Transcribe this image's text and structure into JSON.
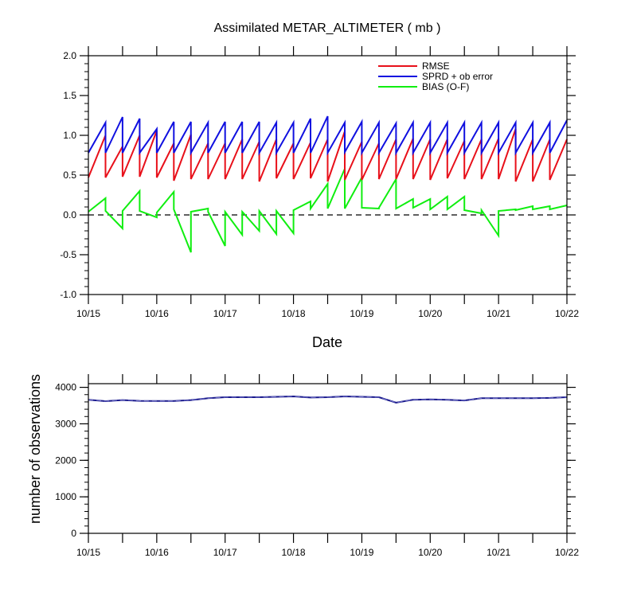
{
  "chart_data": [
    {
      "type": "line",
      "title": "Assimilated METAR_ALTIMETER ( mb )",
      "xlabel": "Date",
      "ylabel": "",
      "xlim": [
        "10/15 00Z",
        "10/22 00Z"
      ],
      "ylim": [
        -1.0,
        2.0
      ],
      "y_ticks": [
        "-1.0",
        "-0.5",
        "0.0",
        "0.5",
        "1.0",
        "1.5",
        "2.0"
      ],
      "x_tick_labels": [
        "10/15",
        "10/16",
        "10/17",
        "10/18",
        "10/19",
        "10/20",
        "10/21",
        "10/22"
      ],
      "zero_line": "dashed",
      "grid": false,
      "legend_position": "top-right",
      "x": [
        "10/15 00Z",
        "10/15 06Z",
        "10/15 12Z",
        "10/15 18Z",
        "10/16 00Z",
        "10/16 06Z",
        "10/16 12Z",
        "10/16 18Z",
        "10/17 00Z",
        "10/17 06Z",
        "10/17 12Z",
        "10/17 18Z",
        "10/18 00Z",
        "10/18 06Z",
        "10/18 12Z",
        "10/18 18Z",
        "10/19 00Z",
        "10/19 06Z",
        "10/19 12Z",
        "10/19 18Z",
        "10/20 00Z",
        "10/20 06Z",
        "10/20 12Z",
        "10/20 18Z",
        "10/21 00Z",
        "10/21 06Z",
        "10/21 12Z",
        "10/21 18Z"
      ],
      "series": [
        {
          "name": "RMSE",
          "color": "#e8101a",
          "start": [
            0.47,
            0.47,
            0.48,
            0.48,
            0.47,
            0.43,
            0.45,
            0.45,
            0.45,
            0.45,
            0.42,
            0.46,
            0.45,
            0.46,
            0.42,
            0.44,
            0.44,
            0.45,
            0.45,
            0.45,
            0.44,
            0.46,
            0.45,
            0.45,
            0.45,
            0.42,
            0.42,
            0.44
          ],
          "end": [
            1.0,
            0.86,
            1.0,
            1.06,
            0.9,
            1.01,
            0.9,
            0.9,
            0.95,
            0.92,
            0.95,
            0.9,
            0.91,
            0.95,
            1.05,
            0.92,
            0.9,
            0.95,
            0.96,
            0.95,
            0.95,
            0.93,
            0.95,
            0.96,
            1.08,
            0.95,
            0.95,
            0.95
          ]
        },
        {
          "name": "SPRD + ob error",
          "color": "#1010e0",
          "start": [
            0.78,
            0.78,
            0.78,
            0.78,
            0.78,
            0.78,
            0.78,
            0.78,
            0.78,
            0.78,
            0.78,
            0.78,
            0.78,
            0.78,
            0.78,
            0.79,
            0.78,
            0.78,
            0.78,
            0.78,
            0.78,
            0.78,
            0.78,
            0.78,
            0.78,
            0.78,
            0.78,
            0.78
          ],
          "end": [
            1.16,
            1.23,
            1.21,
            1.08,
            1.17,
            1.17,
            1.16,
            1.17,
            1.17,
            1.17,
            1.16,
            1.16,
            1.21,
            1.24,
            1.16,
            1.17,
            1.16,
            1.15,
            1.16,
            1.16,
            1.16,
            1.16,
            1.16,
            1.16,
            1.16,
            1.16,
            1.16,
            1.19
          ]
        },
        {
          "name": "BIAS (O-F)",
          "color": "#10ee10",
          "start": [
            0.04,
            0.05,
            0.05,
            0.05,
            0.03,
            0.07,
            0.04,
            0.04,
            0.04,
            0.04,
            0.05,
            0.05,
            0.06,
            0.08,
            0.08,
            0.08,
            0.09,
            0.09,
            0.08,
            0.09,
            0.07,
            0.07,
            0.06,
            0.06,
            0.05,
            0.06,
            0.07,
            0.07
          ],
          "end": [
            0.21,
            -0.17,
            0.3,
            -0.03,
            0.29,
            -0.47,
            0.08,
            -0.39,
            -0.25,
            -0.2,
            -0.24,
            -0.23,
            0.17,
            0.39,
            0.58,
            0.47,
            0.08,
            0.45,
            0.2,
            0.2,
            0.23,
            0.23,
            0.02,
            -0.26,
            0.07,
            0.11,
            0.11,
            0.12
          ]
        }
      ]
    },
    {
      "type": "line",
      "title": "",
      "xlabel": "",
      "ylabel": "number of observations",
      "xlim": [
        "10/15 00Z",
        "10/22 00Z"
      ],
      "ylim": [
        0,
        4100
      ],
      "y_ticks": [
        "0",
        "1000",
        "2000",
        "3000",
        "4000"
      ],
      "x_tick_labels": [
        "10/15",
        "10/16",
        "10/17",
        "10/18",
        "10/19",
        "10/20",
        "10/21",
        "10/22"
      ],
      "grid": false,
      "x": [
        "10/15 00Z",
        "10/15 06Z",
        "10/15 12Z",
        "10/15 18Z",
        "10/16 00Z",
        "10/16 06Z",
        "10/16 12Z",
        "10/16 18Z",
        "10/17 00Z",
        "10/17 06Z",
        "10/17 12Z",
        "10/17 18Z",
        "10/18 00Z",
        "10/18 06Z",
        "10/18 12Z",
        "10/18 18Z",
        "10/19 00Z",
        "10/19 06Z",
        "10/19 12Z",
        "10/19 18Z",
        "10/20 00Z",
        "10/20 06Z",
        "10/20 12Z",
        "10/20 18Z",
        "10/21 00Z",
        "10/21 06Z",
        "10/21 12Z",
        "10/21 18Z",
        "10/22 00Z"
      ],
      "series": [
        {
          "name": "",
          "color": "#1a1a8c",
          "values": [
            3660,
            3620,
            3650,
            3630,
            3625,
            3625,
            3650,
            3700,
            3730,
            3730,
            3730,
            3740,
            3750,
            3720,
            3730,
            3750,
            3740,
            3730,
            3580,
            3660,
            3670,
            3660,
            3640,
            3700,
            3700,
            3700,
            3700,
            3710,
            3730
          ]
        }
      ]
    }
  ]
}
